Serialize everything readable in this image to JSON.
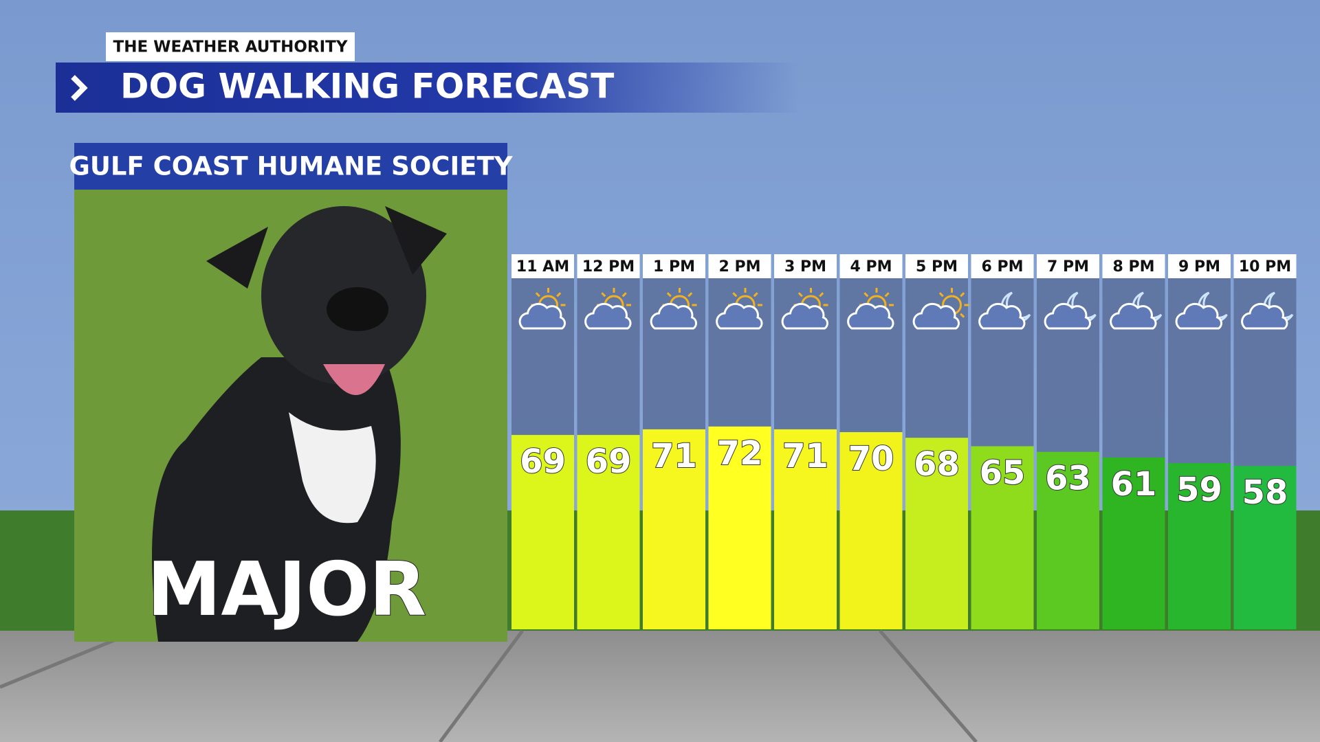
{
  "chart_data": {
    "type": "bar",
    "brand": "THE WEATHER AUTHORITY",
    "title": "DOG WALKING FORECAST",
    "subtitle": "GULF COAST HUMANE SOCIETY",
    "dog_name": "MAJOR",
    "categories": [
      "11 AM",
      "12 PM",
      "1 PM",
      "2 PM",
      "3 PM",
      "4 PM",
      "5 PM",
      "6 PM",
      "7 PM",
      "8 PM",
      "9 PM",
      "10 PM"
    ],
    "values": [
      69,
      69,
      71,
      72,
      71,
      70,
      68,
      65,
      63,
      61,
      59,
      58
    ],
    "colors": [
      "#dcf51a",
      "#dcf51a",
      "#f7f720",
      "#ffff22",
      "#f7f720",
      "#f3f31c",
      "#c6ee1f",
      "#8fdc1c",
      "#5cc822",
      "#2fb422",
      "#27b62e",
      "#22bb40"
    ]
  }
}
